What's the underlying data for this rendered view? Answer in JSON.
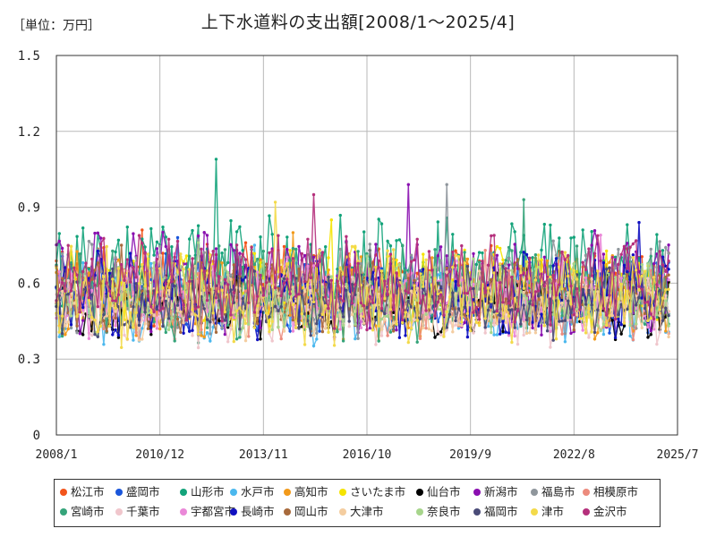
{
  "header": {
    "unit": "［単位：万円］",
    "title": "上下水道料の支出額[2008/1～2025/4]"
  },
  "chart_data": {
    "type": "line",
    "title": "上下水道料の支出額[2008/1～2025/4]",
    "unit_label": "［単位：万円］",
    "xlabel": "",
    "ylabel": "",
    "ylim": [
      0,
      1.5
    ],
    "y_ticks": [
      "0",
      "0.3",
      "0.6",
      "0.9",
      "1.2",
      "1.5"
    ],
    "x_tick_labels": [
      "2008/1",
      "2010/12",
      "2013/11",
      "2016/10",
      "2019/9",
      "2022/8",
      "2025/7"
    ],
    "x_range": [
      "2008/1",
      "2025/7"
    ],
    "x_count": 208,
    "grid": true,
    "legend_position": "bottom",
    "series": [
      {
        "name": "松江市",
        "color": "#f2541b",
        "base": 0.6,
        "amp": 0.12,
        "peak": 0.81
      },
      {
        "name": "盛岡市",
        "color": "#1a56db",
        "base": 0.55,
        "amp": 0.12,
        "peak": 0.78
      },
      {
        "name": "山形市",
        "color": "#13a37a",
        "base": 0.65,
        "amp": 0.18,
        "peak": 1.09
      },
      {
        "name": "水戸市",
        "color": "#4bb8ee",
        "base": 0.52,
        "amp": 0.12,
        "peak": 0.75
      },
      {
        "name": "高知市",
        "color": "#f29a1a",
        "base": 0.55,
        "amp": 0.13,
        "peak": 0.8
      },
      {
        "name": "さいたま市",
        "color": "#f5e400",
        "base": 0.58,
        "amp": 0.12,
        "peak": 0.85
      },
      {
        "name": "仙台市",
        "color": "#000000",
        "base": 0.52,
        "amp": 0.1,
        "peak": 0.73
      },
      {
        "name": "新潟市",
        "color": "#8a0fb0",
        "base": 0.6,
        "amp": 0.17,
        "peak": 0.99
      },
      {
        "name": "福島市",
        "color": "#8f969c",
        "base": 0.58,
        "amp": 0.15,
        "peak": 0.99
      },
      {
        "name": "相模原市",
        "color": "#ec8b7d",
        "base": 0.52,
        "amp": 0.1,
        "peak": 0.73
      },
      {
        "name": "宮崎市",
        "color": "#35a47a",
        "base": 0.55,
        "amp": 0.16,
        "peak": 0.93
      },
      {
        "name": "千葉市",
        "color": "#f0c6cc",
        "base": 0.5,
        "amp": 0.11,
        "peak": 0.71
      },
      {
        "name": "宇都宮市",
        "color": "#ea88d8",
        "base": 0.55,
        "amp": 0.13,
        "peak": 0.79
      },
      {
        "name": "長崎市",
        "color": "#1010c0",
        "base": 0.55,
        "amp": 0.13,
        "peak": 0.84
      },
      {
        "name": "岡山市",
        "color": "#a86a3c",
        "base": 0.55,
        "amp": 0.1,
        "peak": 0.75
      },
      {
        "name": "大津市",
        "color": "#f4cda0",
        "base": 0.52,
        "amp": 0.1,
        "peak": 0.71
      },
      {
        "name": "奈良市",
        "color": "#a7d58c",
        "base": 0.55,
        "amp": 0.11,
        "peak": 0.76
      },
      {
        "name": "福岡市",
        "color": "#4a4c78",
        "base": 0.52,
        "amp": 0.1,
        "peak": 0.73
      },
      {
        "name": "津市",
        "color": "#f3da4a",
        "base": 0.55,
        "amp": 0.16,
        "peak": 0.92
      },
      {
        "name": "金沢市",
        "color": "#b5307c",
        "base": 0.6,
        "amp": 0.15,
        "peak": 0.95
      }
    ]
  }
}
